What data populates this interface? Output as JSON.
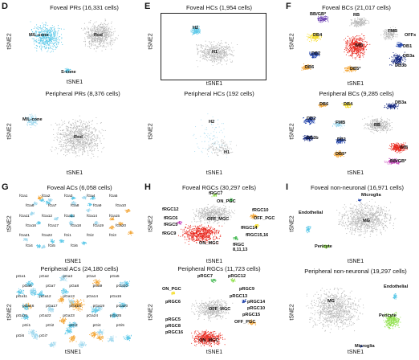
{
  "panels": {
    "D": {
      "letter": "D",
      "top": {
        "title": "Foveal PRs (16,331 cells)",
        "xlabel": "tSNE1",
        "ylabel": "tSNE2",
        "labels": {
          "mlcone": "M/L-cone",
          "rod": "Rod",
          "scone": "S-cone"
        }
      },
      "bottom": {
        "title": "Peripheral PRs (8,376 cells)",
        "xlabel": "tSNE1",
        "ylabel": "tSNE2",
        "labels": {
          "mlcone": "M/L-cone",
          "rod": "Rod"
        }
      }
    },
    "E": {
      "letter": "E",
      "top": {
        "title": "Foveal HCs (1,954 cells)",
        "xlabel": "tSNE1",
        "ylabel": "tSNE2",
        "labels": {
          "h2": "H2",
          "h1": "H1"
        }
      },
      "bottom": {
        "title": "Peripheral HCs (192 cells)",
        "xlabel": "tSNE1",
        "ylabel": "tSNE2",
        "labels": {
          "h2": "H2",
          "h1": "H1"
        }
      }
    },
    "F": {
      "letter": "F",
      "top": {
        "title": "Foveal BCs (21,017 cells)",
        "xlabel": "tSNE1",
        "ylabel": "tSNE2",
        "labels": {
          "bbgb": "BB/GB*",
          "rb": "RB",
          "db4": "DB4",
          "fmb": "FMB",
          "offx": "OFFx",
          "imb": "IMB",
          "db2": "DB2",
          "db1": "DB1",
          "db3a": "DB3a",
          "db6": "DB6",
          "db5": "DB5*",
          "db3b": "DB3b"
        }
      },
      "bottom": {
        "title": "Peripheral BCs (9,285 cells)",
        "xlabel": "tSNE1",
        "ylabel": "tSNE2",
        "labels": {
          "db6": "DB6",
          "db4": "DB4",
          "db3a": "DB3a",
          "db2": "DB2",
          "fmb": "FMB",
          "rb": "RB",
          "db3b": "DB3b",
          "db1": "DB1",
          "imb": "IMB",
          "db5": "DB5*",
          "bbgb": "BB/GB*"
        }
      }
    },
    "G": {
      "letter": "G",
      "top": {
        "title": "Foveal ACs (6,058 cells)",
        "xlabel": "tSNE1",
        "ylabel": "tSNE2",
        "labels": [
          "fGa1",
          "fGa2",
          "fGa3",
          "fGa4",
          "fGa5",
          "fGa6",
          "fGa7",
          "fGa8",
          "fGa9",
          "fGa10",
          "fGa11",
          "fGa12",
          "fGa13",
          "fGa14",
          "fGa15",
          "fGa16",
          "fGa17",
          "fGa18",
          "fGa19",
          "fGa20",
          "fGa21",
          "fGa22",
          "fGi1",
          "fGi2",
          "fGi3",
          "fGi4",
          "fGi5",
          "fGi6"
        ]
      },
      "bottom": {
        "title": "Peripheral ACs (24,180 cells)",
        "xlabel": "tSNE1",
        "ylabel": "tSNE2",
        "labels": [
          "pGa1",
          "pGa2",
          "pGa3",
          "pGa4",
          "pGa5",
          "pGa6",
          "pGa7",
          "pGa8",
          "pGa9",
          "pGa10",
          "pGa11",
          "pGa12",
          "pGa13",
          "pGa14",
          "pGa15",
          "pGa16",
          "pGa17",
          "pGa18",
          "pGa19",
          "pGa20",
          "pGa21",
          "pGa22",
          "pGa23",
          "pGa24",
          "pGa25",
          "pGi1",
          "pGi2",
          "pGi3",
          "pGi4",
          "pGi5",
          "pGi6",
          "pGi7"
        ]
      }
    },
    "H": {
      "letter": "H",
      "top": {
        "title": "Foveal RGCs (30,297 cells)",
        "xlabel": "tSNE1",
        "ylabel": "tSNE2",
        "labels": {
          "fRGC7": "fRGC7",
          "onpgc": "ON_PGC",
          "fRGC12": "fRGC12",
          "offmgc": "OFF_MGC",
          "fRGC10": "fRGC10",
          "offpgc": "OFF_PGC",
          "fRGC6": "fRGC6",
          "fRGC5": "fRGC5",
          "fRGC9": "fRGC9",
          "fRGC14": "fRGC14",
          "fRGC1516": "fRGC15,16",
          "onmgc": "ON_MGC",
          "fRGC81113": "fRGC\n8,11,13"
        }
      },
      "bottom": {
        "title": "Peripheral RGCs (11,723 cells)",
        "xlabel": "tSNE1",
        "ylabel": "tSNE2",
        "labels": {
          "pRGC7": "pRGC7",
          "pRGC12": "pRGC12",
          "onpgc": "ON_PGC",
          "pRGC9": "pRGC9",
          "pRGC13": "pRGC13",
          "pRGC14": "pRGC14",
          "pRGC6": "pRGC6",
          "pRGC10": "pRGC10",
          "offmgc": "OFF_MGC",
          "pRGC15": "pRGC15",
          "offpgc": "OFF_PGC",
          "pRGC5": "pRGC5",
          "pRGC8": "pRGC8",
          "pRGC16": "pRGC16",
          "onmgc": "ON_MGC"
        }
      }
    },
    "I": {
      "letter": "I",
      "top": {
        "title": "Foveal non-neuronal (16,971 cells)",
        "xlabel": "tSNE1",
        "ylabel": "tSNE2",
        "labels": {
          "microglia": "Microglia",
          "endothelial": "Endothelial",
          "mg": "MG",
          "pericyte": "Pericyte"
        }
      },
      "bottom": {
        "title": "Peripheral non-neuronal (19,297 cells)",
        "xlabel": "tSNE1",
        "ylabel": "tSNE2",
        "labels": {
          "endothelial": "Endothelial",
          "mg": "MG",
          "pericyte": "Pericyte",
          "microglia": "Microglia"
        }
      }
    }
  },
  "colors": {
    "gray": "#b8b8b8",
    "darkgray": "#8c8c8c",
    "cyan": "#5bc8e8",
    "lightblue": "#9fd8ee",
    "blue": "#1d3fa8",
    "navy": "#0b1f7a",
    "red": "#e8281e",
    "orange": "#f3a73a",
    "yellow": "#f5dd2a",
    "lime": "#8fe04a",
    "green": "#3cb54a",
    "magenta": "#c33ab8",
    "purple": "#6a3fb0"
  }
}
